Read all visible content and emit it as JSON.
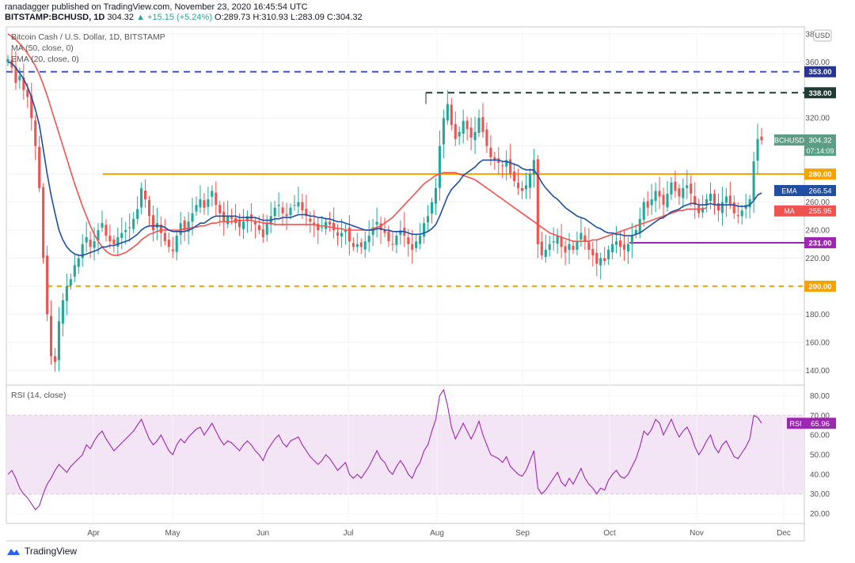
{
  "header": {
    "publisher": "ranadagger published on TradingView.com, November 23, 2020 16:45:54 UTC",
    "symbol": "BITSTAMP:BCHUSD, 1D",
    "last": "304.32",
    "change_arrow": "▲",
    "change": "+15.15 (+5.24%)",
    "ohlc": "O:289.73 H:310.93 L:283.09 C:304.32"
  },
  "legend": {
    "title": "Bitcoin Cash / U.S. Dollar, 1D, BITSTAMP",
    "ma": "MA (50, close, 0)",
    "ema": "EMA (20, close, 0)",
    "rsi": "RSI (14, close)"
  },
  "footer": {
    "brand": "TradingView",
    "logo_icon": "tradingview-logo-icon"
  },
  "colors": {
    "up": "#26a69a",
    "down": "#ef5350",
    "ema": "#1e4fa3",
    "ma": "#ef5350",
    "orange": "#f5a300",
    "purple": "#9c27b0",
    "dark_dash": "#1f3b34",
    "blue_dash": "#3f51d1",
    "rsi_line": "#9c27b0",
    "rsi_band": "#f3e5f5"
  },
  "chart_data": {
    "type": "candlestick",
    "currency_label": "USD",
    "price_axis": {
      "ticks": [
        140,
        160,
        180,
        200,
        220,
        240,
        260,
        280,
        300,
        320,
        340,
        360,
        380
      ],
      "ylim": [
        130,
        385
      ]
    },
    "rsi_axis": {
      "ticks": [
        20,
        30,
        40,
        50,
        60,
        70,
        80
      ],
      "ylim": [
        15,
        85
      ]
    },
    "x_labels": [
      "Apr",
      "May",
      "Jun",
      "Jul",
      "Aug",
      "Sep",
      "Oct",
      "Nov",
      "Dec"
    ],
    "horizontal_levels": [
      {
        "label": "353.00",
        "value": 353,
        "style": "blue-dash"
      },
      {
        "label": "338.00",
        "value": 338,
        "style": "dark-dash"
      },
      {
        "label": "280.00",
        "value": 280,
        "style": "orange-solid"
      },
      {
        "label": "231.00",
        "value": 231,
        "style": "purple-solid"
      },
      {
        "label": "200.00",
        "value": 200,
        "style": "orange-dash"
      }
    ],
    "price_tags": [
      {
        "label": "BCHUSD",
        "value": "304.32",
        "y": 304.32,
        "timer": "07:14:09"
      },
      {
        "label": "EMA",
        "value": "266.54",
        "y": 266.54
      },
      {
        "label": "MA",
        "value": "255.95",
        "y": 255.95
      }
    ],
    "rsi_tag": {
      "label": "RSI",
      "value": "65.96",
      "y": 65.96
    },
    "closes": [
      362,
      356,
      345,
      350,
      340,
      335,
      320,
      300,
      270,
      220,
      180,
      150,
      146,
      175,
      190,
      200,
      205,
      215,
      220,
      230,
      235,
      228,
      232,
      240,
      245,
      236,
      232,
      230,
      235,
      238,
      240,
      242,
      248,
      255,
      270,
      262,
      250,
      240,
      245,
      238,
      232,
      228,
      225,
      236,
      245,
      240,
      246,
      252,
      258,
      262,
      256,
      262,
      268,
      258,
      252,
      246,
      250,
      248,
      245,
      242,
      246,
      250,
      248,
      244,
      240,
      235,
      245,
      250,
      256,
      258,
      252,
      250,
      256,
      258,
      260,
      254,
      250,
      246,
      244,
      240,
      242,
      246,
      244,
      240,
      236,
      238,
      240,
      232,
      228,
      230,
      228,
      232,
      236,
      242,
      246,
      240,
      238,
      232,
      230,
      236,
      240,
      236,
      230,
      226,
      232,
      236,
      245,
      250,
      260,
      270,
      300,
      320,
      330,
      315,
      305,
      310,
      318,
      312,
      306,
      310,
      320,
      310,
      300,
      292,
      290,
      288,
      286,
      290,
      280,
      275,
      270,
      268,
      272,
      280,
      290,
      230,
      222,
      226,
      230,
      232,
      236,
      228,
      224,
      230,
      226,
      232,
      238,
      232,
      226,
      222,
      216,
      220,
      218,
      226,
      230,
      232,
      228,
      226,
      230,
      236,
      240,
      248,
      260,
      256,
      262,
      268,
      264,
      258,
      266,
      274,
      268,
      264,
      270,
      272,
      266,
      258,
      252,
      256,
      262,
      266,
      258,
      254,
      260,
      264,
      258,
      252,
      250,
      254,
      258,
      262,
      289,
      305,
      304
    ],
    "ema20": [
      360,
      359,
      356,
      352,
      348,
      342,
      335,
      326,
      315,
      298,
      280,
      265,
      252,
      240,
      233,
      228,
      225,
      223,
      222,
      222,
      223,
      224,
      225,
      226,
      228,
      228,
      229,
      229,
      230,
      231,
      232,
      233,
      235,
      237,
      240,
      242,
      243,
      243,
      243,
      243,
      242,
      240,
      239,
      239,
      239,
      239,
      240,
      241,
      243,
      245,
      245,
      247,
      249,
      250,
      250,
      250,
      250,
      250,
      250,
      249,
      249,
      249,
      249,
      249,
      248,
      247,
      247,
      247,
      248,
      248,
      249,
      249,
      249,
      250,
      251,
      251,
      251,
      250,
      250,
      249,
      249,
      248,
      248,
      247,
      246,
      246,
      245,
      244,
      243,
      242,
      241,
      240,
      240,
      240,
      241,
      241,
      240,
      240,
      239,
      239,
      239,
      239,
      238,
      237,
      237,
      237,
      238,
      239,
      241,
      244,
      250,
      257,
      264,
      269,
      272,
      275,
      279,
      281,
      283,
      285,
      288,
      290,
      290,
      290,
      290,
      290,
      289,
      289,
      288,
      287,
      286,
      284,
      283,
      283,
      283,
      279,
      274,
      270,
      267,
      264,
      262,
      259,
      256,
      254,
      252,
      250,
      249,
      248,
      246,
      244,
      242,
      241,
      239,
      238,
      238,
      237,
      237,
      236,
      236,
      236,
      237,
      238,
      240,
      242,
      244,
      246,
      248,
      249,
      251,
      253,
      254,
      255,
      257,
      258,
      259,
      259,
      258,
      258,
      258,
      259,
      258,
      258,
      258,
      258,
      258,
      258,
      257,
      257,
      257,
      258,
      261,
      265,
      266.54
    ],
    "ma50": [
      380,
      378,
      376,
      373,
      370,
      366,
      362,
      357,
      351,
      344,
      336,
      327,
      318,
      309,
      300,
      291,
      282,
      273,
      265,
      257,
      250,
      243,
      237,
      232,
      228,
      225,
      223,
      222,
      222,
      223,
      224,
      226,
      228,
      230,
      233,
      235,
      237,
      238,
      239,
      240,
      240,
      240,
      240,
      240,
      240,
      241,
      241,
      242,
      242,
      243,
      243,
      244,
      245,
      245,
      246,
      246,
      246,
      246,
      247,
      247,
      247,
      247,
      247,
      246,
      246,
      245,
      245,
      245,
      244,
      244,
      244,
      244,
      244,
      244,
      244,
      244,
      244,
      244,
      244,
      243,
      243,
      243,
      242,
      242,
      241,
      241,
      240,
      240,
      240,
      240,
      240,
      240,
      240,
      241,
      242,
      243,
      245,
      247,
      249,
      252,
      255,
      258,
      261,
      264,
      267,
      270,
      273,
      275,
      277,
      279,
      280,
      281,
      281,
      281,
      281,
      280,
      279,
      278,
      277,
      276,
      274,
      272,
      270,
      268,
      266,
      264,
      262,
      260,
      258,
      256,
      254,
      252,
      250,
      248,
      246,
      244,
      242,
      240,
      238,
      237,
      236,
      235,
      234,
      233,
      232,
      232,
      232,
      232,
      232,
      233,
      233,
      234,
      235,
      236,
      237,
      238,
      239,
      240,
      241,
      242,
      243,
      244,
      245,
      246,
      247,
      248,
      249,
      250,
      251,
      252,
      253,
      254,
      254,
      255,
      255,
      255,
      255,
      255,
      255.95
    ],
    "rsi": [
      40,
      42,
      38,
      33,
      30,
      28,
      25,
      22,
      24,
      30,
      35,
      38,
      42,
      45,
      43,
      41,
      44,
      46,
      48,
      50,
      55,
      53,
      57,
      60,
      62,
      58,
      55,
      52,
      54,
      56,
      58,
      60,
      62,
      65,
      68,
      63,
      58,
      55,
      57,
      60,
      56,
      52,
      50,
      55,
      58,
      56,
      59,
      61,
      63,
      64,
      60,
      63,
      66,
      62,
      58,
      55,
      57,
      56,
      54,
      52,
      55,
      57,
      55,
      52,
      50,
      47,
      52,
      55,
      58,
      60,
      56,
      54,
      57,
      58,
      59,
      55,
      52,
      49,
      47,
      45,
      47,
      50,
      48,
      45,
      42,
      44,
      46,
      40,
      38,
      40,
      38,
      41,
      44,
      48,
      52,
      48,
      46,
      42,
      40,
      44,
      47,
      44,
      40,
      38,
      43,
      46,
      52,
      55,
      62,
      68,
      80,
      83,
      75,
      64,
      58,
      62,
      66,
      62,
      58,
      62,
      67,
      60,
      55,
      50,
      49,
      48,
      46,
      49,
      44,
      42,
      40,
      39,
      42,
      47,
      52,
      33,
      30,
      32,
      35,
      38,
      41,
      36,
      34,
      38,
      35,
      39,
      43,
      38,
      35,
      33,
      30,
      33,
      32,
      37,
      40,
      42,
      39,
      38,
      40,
      44,
      48,
      54,
      62,
      60,
      63,
      68,
      66,
      60,
      64,
      68,
      63,
      59,
      62,
      64,
      60,
      54,
      50,
      53,
      57,
      60,
      54,
      51,
      55,
      57,
      53,
      49,
      48,
      51,
      54,
      58,
      70,
      69,
      66
    ]
  }
}
